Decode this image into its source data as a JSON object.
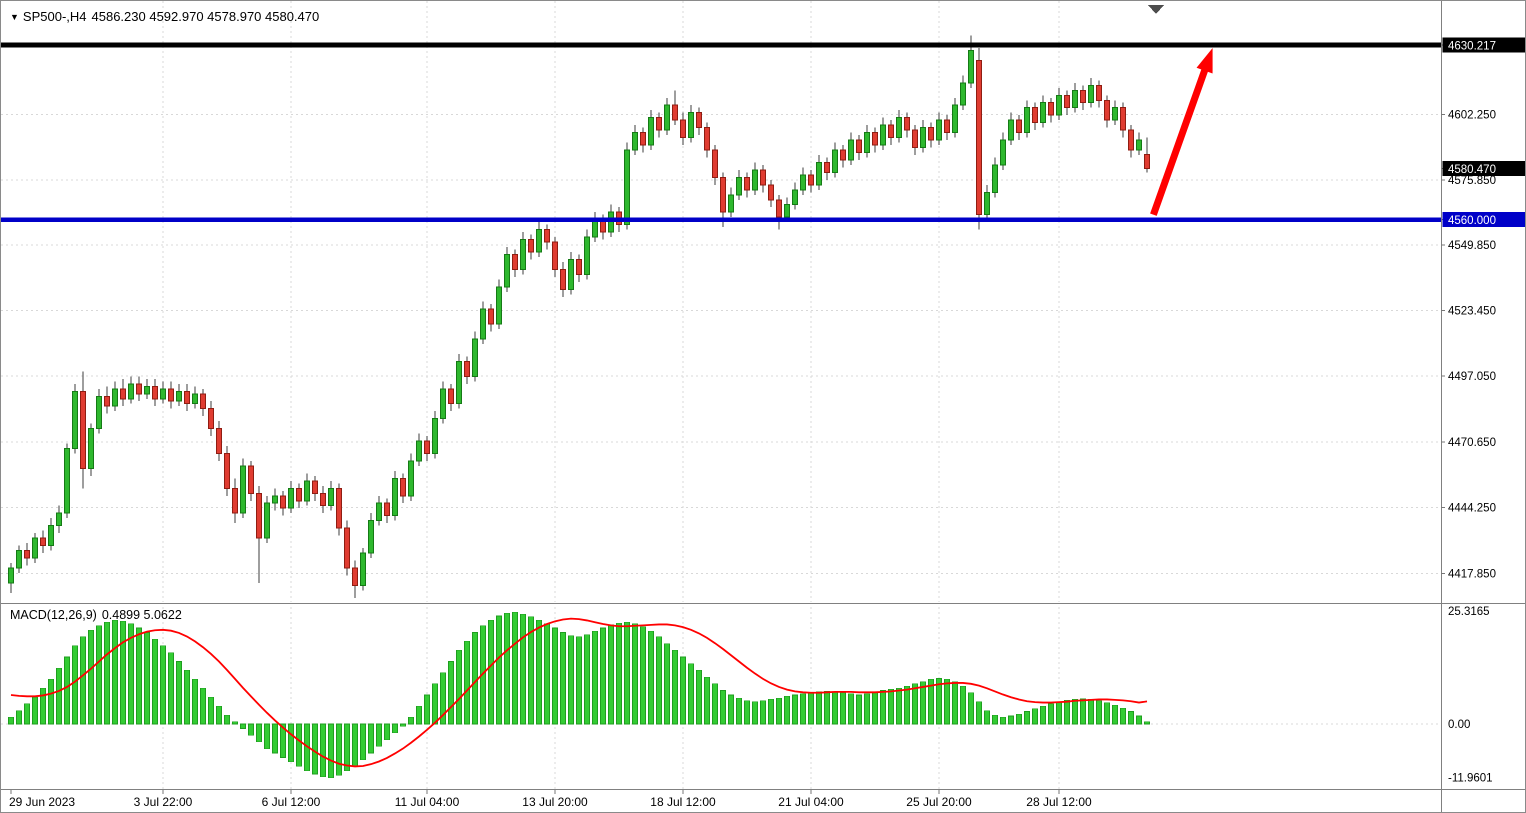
{
  "header": {
    "symbol_period": "SP500-,H4",
    "ohlc_values": "4586.230 4592.970 4578.970 4580.470"
  },
  "indicator": {
    "name": "MACD(12,26,9)",
    "values": "0.4899 5.0622"
  },
  "colors": {
    "bull": "#2EB82E",
    "bull_border": "#157A15",
    "bear": "#E03C31",
    "bear_border": "#8F1D12",
    "wick": "#3C3C3C",
    "macd_histogram": "#33CC33",
    "macd_histogram_border": "#1F9E1F",
    "macd_signal": "#FF0000",
    "grid": "#D8D8D8",
    "resistance": "#000000",
    "support": "#0000C8",
    "arrow": "#FF0000",
    "axis_text": "#000000",
    "border": "#808080"
  },
  "chart_data": [
    {
      "type": "candlestick",
      "title": "SP500- H4",
      "ylim": [
        4406.6,
        4647.9
      ],
      "current_price": 4580.47,
      "y_ticks": [
        {
          "text": "4630.217",
          "price": 4630.217,
          "style": "black_badge",
          "role": "resistance-level"
        },
        {
          "text": "4602.250",
          "price": 4602.25,
          "style": "plain",
          "role": "tick"
        },
        {
          "text": "4580.470",
          "price": 4580.47,
          "style": "black_badge",
          "role": "current-price"
        },
        {
          "text": "4575.850",
          "price": 4575.85,
          "style": "plain",
          "role": "tick"
        },
        {
          "text": "4560.000",
          "price": 4560.0,
          "style": "blue_badge",
          "role": "support-level"
        },
        {
          "text": "4549.850",
          "price": 4549.85,
          "style": "plain",
          "role": "tick"
        },
        {
          "text": "4523.450",
          "price": 4523.45,
          "style": "plain",
          "role": "tick"
        },
        {
          "text": "4497.050",
          "price": 4497.05,
          "style": "plain",
          "role": "tick"
        },
        {
          "text": "4470.650",
          "price": 4470.65,
          "style": "plain",
          "role": "tick"
        },
        {
          "text": "4444.250",
          "price": 4444.25,
          "style": "plain",
          "role": "tick"
        },
        {
          "text": "4417.850",
          "price": 4417.85,
          "style": "plain",
          "role": "tick"
        }
      ],
      "x_ticks": [
        {
          "label": "29 Jun 2023",
          "index": 0
        },
        {
          "label": "3 Jul 22:00",
          "index": 19
        },
        {
          "label": "6 Jul 12:00",
          "index": 35
        },
        {
          "label": "11 Jul 04:00",
          "index": 52
        },
        {
          "label": "13 Jul 20:00",
          "index": 68
        },
        {
          "label": "18 Jul 12:00",
          "index": 84
        },
        {
          "label": "21 Jul 04:00",
          "index": 100
        },
        {
          "label": "25 Jul 20:00",
          "index": 116
        },
        {
          "label": "28 Jul 12:00",
          "index": 131
        }
      ],
      "levels": [
        {
          "name": "resistance",
          "price": 4630.217,
          "color": "#000000",
          "thickness": 5
        },
        {
          "name": "support",
          "price": 4560.0,
          "color": "#0000C8",
          "thickness": 4.5
        }
      ],
      "annotations": [
        {
          "type": "arrow",
          "color": "#FF0000",
          "from": {
            "index": 142.8,
            "price": 4562
          },
          "to": {
            "index": 150.2,
            "price": 4629
          }
        }
      ],
      "ohlc": [
        [
          4414,
          4422,
          4410,
          4420
        ],
        [
          4420,
          4429,
          4418,
          4427
        ],
        [
          4427,
          4430,
          4421,
          4424
        ],
        [
          4424,
          4434,
          4422,
          4432
        ],
        [
          4432,
          4435,
          4426,
          4429
        ],
        [
          4429,
          4440,
          4427,
          4437
        ],
        [
          4437,
          4445,
          4434,
          4442
        ],
        [
          4442,
          4470,
          4440,
          4468
        ],
        [
          4468,
          4494,
          4466,
          4491
        ],
        [
          4491,
          4499,
          4452,
          4460
        ],
        [
          4460,
          4478,
          4457,
          4476
        ],
        [
          4476,
          4492,
          4474,
          4489
        ],
        [
          4489,
          4493,
          4482,
          4485
        ],
        [
          4485,
          4495,
          4483,
          4492
        ],
        [
          4492,
          4496,
          4485,
          4488
        ],
        [
          4488,
          4497,
          4486,
          4494
        ],
        [
          4494,
          4497,
          4487,
          4490
        ],
        [
          4490,
          4496,
          4488,
          4493
        ],
        [
          4493,
          4496,
          4485,
          4488
        ],
        [
          4488,
          4495,
          4486,
          4492
        ],
        [
          4492,
          4495,
          4484,
          4487
        ],
        [
          4487,
          4494,
          4485,
          4491
        ],
        [
          4491,
          4494,
          4483,
          4486
        ],
        [
          4486,
          4493,
          4484,
          4490
        ],
        [
          4490,
          4492,
          4481,
          4484
        ],
        [
          4484,
          4487,
          4473,
          4476
        ],
        [
          4476,
          4479,
          4463,
          4466
        ],
        [
          4466,
          4469,
          4449,
          4452
        ],
        [
          4452,
          4456,
          4438,
          4442
        ],
        [
          4442,
          4464,
          4440,
          4461
        ],
        [
          4461,
          4463,
          4447,
          4450
        ],
        [
          4450,
          4453,
          4414,
          4432
        ],
        [
          4432,
          4449,
          4430,
          4446
        ],
        [
          4446,
          4452,
          4443,
          4449
        ],
        [
          4449,
          4451,
          4441,
          4444
        ],
        [
          4444,
          4455,
          4442,
          4452
        ],
        [
          4452,
          4454,
          4444,
          4447
        ],
        [
          4447,
          4458,
          4445,
          4455
        ],
        [
          4455,
          4457,
          4447,
          4450
        ],
        [
          4450,
          4453,
          4442,
          4445
        ],
        [
          4445,
          4455,
          4443,
          4452
        ],
        [
          4452,
          4454,
          4433,
          4436
        ],
        [
          4436,
          4439,
          4417,
          4420
        ],
        [
          4420,
          4423,
          4408,
          4413
        ],
        [
          4413,
          4428,
          4411,
          4426
        ],
        [
          4426,
          4442,
          4424,
          4439
        ],
        [
          4439,
          4449,
          4437,
          4446
        ],
        [
          4446,
          4448,
          4438,
          4441
        ],
        [
          4441,
          4459,
          4439,
          4456
        ],
        [
          4456,
          4458,
          4446,
          4449
        ],
        [
          4449,
          4466,
          4447,
          4463
        ],
        [
          4463,
          4474,
          4461,
          4471
        ],
        [
          4471,
          4473,
          4463,
          4466
        ],
        [
          4466,
          4483,
          4464,
          4480
        ],
        [
          4480,
          4495,
          4478,
          4492
        ],
        [
          4492,
          4494,
          4483,
          4486
        ],
        [
          4486,
          4506,
          4484,
          4503
        ],
        [
          4503,
          4505,
          4494,
          4497
        ],
        [
          4497,
          4515,
          4495,
          4512
        ],
        [
          4512,
          4527,
          4510,
          4524
        ],
        [
          4524,
          4526,
          4515,
          4518
        ],
        [
          4518,
          4536,
          4516,
          4533
        ],
        [
          4533,
          4549,
          4531,
          4546
        ],
        [
          4546,
          4548,
          4537,
          4540
        ],
        [
          4540,
          4555,
          4538,
          4552
        ],
        [
          4552,
          4554,
          4544,
          4547
        ],
        [
          4547,
          4559,
          4545,
          4556
        ],
        [
          4556,
          4558,
          4548,
          4551
        ],
        [
          4551,
          4553,
          4537,
          4540
        ],
        [
          4540,
          4543,
          4529,
          4532
        ],
        [
          4532,
          4547,
          4530,
          4544
        ],
        [
          4544,
          4546,
          4535,
          4538
        ],
        [
          4538,
          4556,
          4536,
          4553
        ],
        [
          4553,
          4563,
          4551,
          4560
        ],
        [
          4560,
          4562,
          4552,
          4555
        ],
        [
          4555,
          4566,
          4553,
          4563
        ],
        [
          4563,
          4565,
          4555,
          4558
        ],
        [
          4558,
          4591,
          4556,
          4588
        ],
        [
          4588,
          4598,
          4586,
          4595
        ],
        [
          4595,
          4597,
          4587,
          4590
        ],
        [
          4590,
          4604,
          4588,
          4601
        ],
        [
          4601,
          4603,
          4593,
          4596
        ],
        [
          4596,
          4609,
          4594,
          4606
        ],
        [
          4606,
          4612,
          4598,
          4600
        ],
        [
          4600,
          4603,
          4590,
          4593
        ],
        [
          4593,
          4606,
          4591,
          4603
        ],
        [
          4603,
          4605,
          4594,
          4597
        ],
        [
          4597,
          4599,
          4585,
          4588
        ],
        [
          4588,
          4590,
          4574,
          4577
        ],
        [
          4577,
          4579,
          4557,
          4563
        ],
        [
          4563,
          4573,
          4561,
          4570
        ],
        [
          4570,
          4580,
          4568,
          4577
        ],
        [
          4577,
          4579,
          4569,
          4572
        ],
        [
          4572,
          4583,
          4570,
          4580
        ],
        [
          4580,
          4582,
          4571,
          4574
        ],
        [
          4574,
          4576,
          4565,
          4568
        ],
        [
          4568,
          4570,
          4556,
          4561
        ],
        [
          4561,
          4569,
          4559,
          4566
        ],
        [
          4566,
          4575,
          4564,
          4572
        ],
        [
          4572,
          4581,
          4570,
          4578
        ],
        [
          4578,
          4580,
          4571,
          4574
        ],
        [
          4574,
          4586,
          4572,
          4583
        ],
        [
          4583,
          4585,
          4576,
          4579
        ],
        [
          4579,
          4591,
          4577,
          4588
        ],
        [
          4588,
          4590,
          4581,
          4584
        ],
        [
          4584,
          4595,
          4582,
          4592
        ],
        [
          4592,
          4594,
          4584,
          4587
        ],
        [
          4587,
          4598,
          4585,
          4595
        ],
        [
          4595,
          4597,
          4587,
          4590
        ],
        [
          4590,
          4601,
          4588,
          4598
        ],
        [
          4598,
          4600,
          4590,
          4593
        ],
        [
          4593,
          4604,
          4591,
          4601
        ],
        [
          4601,
          4603,
          4593,
          4596
        ],
        [
          4596,
          4598,
          4586,
          4589
        ],
        [
          4589,
          4600,
          4587,
          4597
        ],
        [
          4597,
          4599,
          4589,
          4592
        ],
        [
          4592,
          4603,
          4590,
          4600
        ],
        [
          4600,
          4602,
          4592,
          4595
        ],
        [
          4595,
          4609,
          4593,
          4606
        ],
        [
          4606,
          4618,
          4604,
          4615
        ],
        [
          4615,
          4634,
          4613,
          4628
        ],
        [
          4624,
          4629,
          4556,
          4562
        ],
        [
          4562,
          4574,
          4560,
          4571
        ],
        [
          4571,
          4585,
          4569,
          4582
        ],
        [
          4582,
          4595,
          4580,
          4592
        ],
        [
          4592,
          4603,
          4590,
          4600
        ],
        [
          4600,
          4602,
          4592,
          4595
        ],
        [
          4595,
          4608,
          4593,
          4605
        ],
        [
          4605,
          4607,
          4596,
          4599
        ],
        [
          4599,
          4610,
          4597,
          4607
        ],
        [
          4607,
          4609,
          4599,
          4602
        ],
        [
          4602,
          4613,
          4600,
          4610
        ],
        [
          4610,
          4612,
          4602,
          4605
        ],
        [
          4605,
          4615,
          4603,
          4612
        ],
        [
          4612,
          4614,
          4604,
          4607
        ],
        [
          4607,
          4617,
          4605,
          4614
        ],
        [
          4614,
          4616,
          4605,
          4608
        ],
        [
          4608,
          4610,
          4597,
          4600
        ],
        [
          4600,
          4608,
          4598,
          4605
        ],
        [
          4605,
          4607,
          4593,
          4596
        ],
        [
          4596,
          4598,
          4585,
          4588
        ],
        [
          4588,
          4595,
          4586,
          4592
        ],
        [
          4586.23,
          4592.97,
          4578.97,
          4580.47
        ]
      ]
    },
    {
      "type": "bar",
      "name": "MACD(12,26,9)",
      "display_values": [
        "0.4899",
        "5.0622"
      ],
      "ylim": [
        -14.6,
        26.2
      ],
      "y_ticks": [
        {
          "text": "25.3165",
          "value": 25.3165
        },
        {
          "text": "0.00",
          "value": 0
        },
        {
          "text": "-11.9601",
          "value": -11.9601
        }
      ],
      "histogram": [
        1.5,
        3,
        4.5,
        6,
        8,
        10,
        12.5,
        15,
        17.5,
        19.5,
        21,
        22,
        22.8,
        23.2,
        23,
        22.5,
        21.5,
        20.5,
        19,
        17.5,
        16,
        14,
        12,
        10,
        8,
        6,
        4,
        2,
        0.5,
        -1,
        -2.5,
        -4,
        -5.5,
        -6.5,
        -7.5,
        -8.5,
        -9.5,
        -10.5,
        -11.2,
        -11.8,
        -12,
        -11.5,
        -10.5,
        -9.5,
        -8,
        -6.5,
        -5,
        -3.5,
        -2,
        -0.5,
        1.5,
        4,
        6.5,
        9,
        11.5,
        14,
        16.5,
        18.5,
        20.5,
        22,
        23.2,
        24.2,
        24.8,
        25,
        24.6,
        24,
        23.2,
        22.5,
        21.5,
        20.5,
        19.8,
        19.5,
        20,
        20.8,
        21.5,
        22.2,
        22.6,
        22.8,
        22.5,
        21.8,
        20.8,
        19.5,
        18,
        16.5,
        15,
        13.5,
        12,
        10.5,
        9,
        7.5,
        6.5,
        5.8,
        5.2,
        5,
        5.2,
        5.5,
        5.8,
        6.2,
        6.5,
        6.8,
        7,
        7.2,
        7.3,
        7.2,
        7,
        6.8,
        6.5,
        6.8,
        7.2,
        7.5,
        7.8,
        8,
        8.5,
        9,
        9.5,
        10,
        10.2,
        10,
        9.5,
        8.5,
        7,
        5,
        3,
        2,
        1.5,
        1.8,
        2.2,
        2.8,
        3.4,
        4,
        4.5,
        5,
        5.3,
        5.5,
        5.6,
        5.5,
        5.2,
        4.8,
        4.2,
        3.5,
        2.8,
        1.8,
        0.49
      ],
      "signal": [
        6.5,
        6.3,
        6.2,
        6.2,
        6.4,
        6.8,
        7.4,
        8.3,
        9.5,
        10.9,
        12.4,
        14,
        15.6,
        17,
        18.3,
        19.3,
        20.1,
        20.7,
        21,
        21.1,
        20.9,
        20.4,
        19.6,
        18.5,
        17.2,
        15.7,
        14,
        12.1,
        10.1,
        8.1,
        6.2,
        4.3,
        2.5,
        0.8,
        -0.8,
        -2.3,
        -3.7,
        -5,
        -6.2,
        -7.3,
        -8.2,
        -8.9,
        -9.3,
        -9.5,
        -9.4,
        -9,
        -8.4,
        -7.6,
        -6.6,
        -5.5,
        -4.2,
        -2.8,
        -1.3,
        0.3,
        2,
        3.8,
        5.6,
        7.5,
        9.4,
        11.3,
        13.1,
        14.9,
        16.5,
        18,
        19.4,
        20.6,
        21.6,
        22.4,
        23,
        23.4,
        23.6,
        23.5,
        23.2,
        22.8,
        22.4,
        22.1,
        21.9,
        21.9,
        22,
        22.1,
        22.2,
        22.3,
        22.3,
        22.1,
        21.7,
        21.1,
        20.3,
        19.3,
        18.1,
        16.8,
        15.4,
        14,
        12.6,
        11.3,
        10.1,
        9.1,
        8.3,
        7.7,
        7.3,
        7.1,
        7,
        7,
        7.1,
        7.2,
        7.2,
        7.2,
        7.1,
        7.1,
        7.1,
        7.2,
        7.3,
        7.5,
        7.7,
        8,
        8.3,
        8.6,
        8.9,
        9.1,
        9.2,
        9.2,
        9,
        8.6,
        8,
        7.3,
        6.6,
        6,
        5.5,
        5.1,
        4.9,
        4.8,
        4.8,
        4.9,
        5,
        5.2,
        5.3,
        5.4,
        5.5,
        5.5,
        5.4,
        5.3,
        5.1,
        4.8,
        5.06
      ]
    }
  ]
}
